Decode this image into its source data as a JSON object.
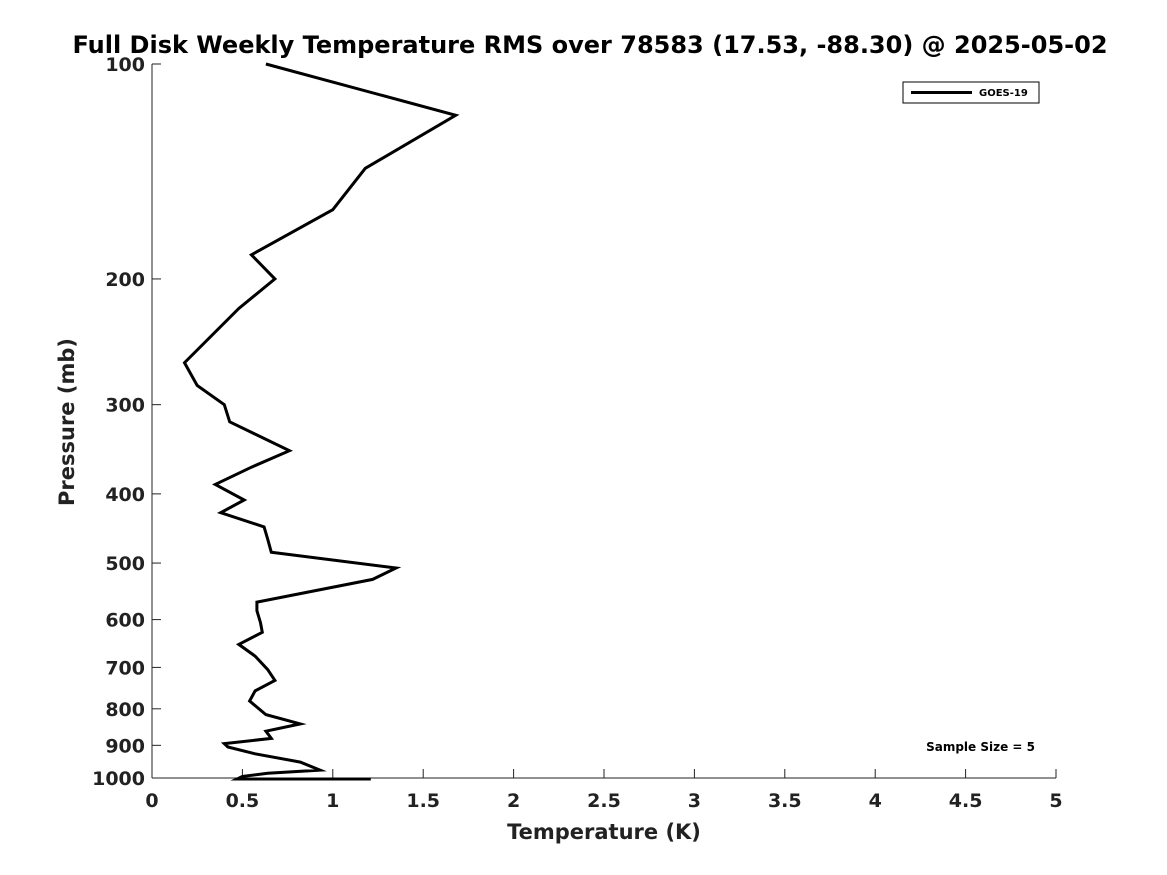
{
  "chart_data": {
    "type": "line",
    "title": "Full Disk Weekly Temperature RMS over 78583 (17.53, -88.30) @ 2025-05-02",
    "xlabel": "Temperature (K)",
    "ylabel": "Pressure (mb)",
    "xlim": [
      0,
      5
    ],
    "ylim": [
      100,
      1000
    ],
    "y_scale": "log",
    "y_reversed": true,
    "grid": false,
    "x_ticks": [
      0,
      0.5,
      1,
      1.5,
      2,
      2.5,
      3,
      3.5,
      4,
      4.5,
      5
    ],
    "x_tick_labels": [
      "0",
      "0.5",
      "1",
      "1.5",
      "2",
      "2.5",
      "3",
      "3.5",
      "4",
      "4.5",
      "5"
    ],
    "y_ticks": [
      100,
      200,
      300,
      400,
      500,
      600,
      700,
      800,
      900,
      1000
    ],
    "y_tick_labels": [
      "100",
      "200",
      "300",
      "400",
      "500",
      "600",
      "700",
      "800",
      "900",
      "1000"
    ],
    "legend": {
      "position": "top-right",
      "entries": [
        "GOES-19"
      ]
    },
    "annotation": "Sample Size = 5",
    "series": [
      {
        "name": "GOES-19",
        "color": "#000000",
        "x": [
          0.63,
          1.68,
          1.18,
          1.0,
          0.55,
          0.68,
          0.48,
          0.18,
          0.25,
          0.4,
          0.43,
          0.76,
          0.55,
          0.35,
          0.51,
          0.38,
          0.62,
          0.64,
          0.66,
          1.35,
          1.22,
          0.58,
          0.58,
          0.6,
          0.61,
          0.48,
          0.57,
          0.64,
          0.68,
          0.57,
          0.54,
          0.63,
          0.82,
          0.63,
          0.66,
          0.4,
          0.42,
          0.57,
          0.82,
          0.93,
          0.64,
          0.5,
          0.47,
          0.62,
          1.21
        ],
        "y": [
          100,
          118,
          140,
          160,
          185,
          200,
          220,
          262,
          282,
          300,
          317,
          348,
          367,
          388,
          408,
          425,
          445,
          463,
          483,
          508,
          527,
          567,
          583,
          606,
          625,
          650,
          675,
          705,
          730,
          755,
          780,
          815,
          840,
          860,
          880,
          895,
          905,
          925,
          950,
          975,
          985,
          995,
          1005,
          1010,
          1020
        ]
      }
    ]
  }
}
